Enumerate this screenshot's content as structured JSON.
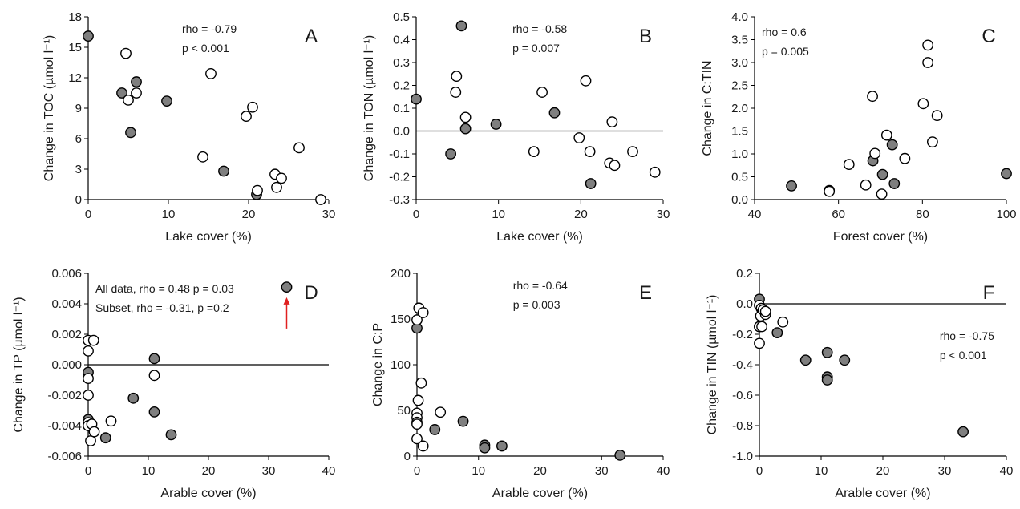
{
  "chart_data": [
    {
      "type": "scatter",
      "panel": "A",
      "xlabel": "Lake cover (%)",
      "ylabel": "Change in TOC (µmol l⁻¹)",
      "xlim": [
        0,
        30
      ],
      "ylim": [
        0,
        18
      ],
      "xticks": [
        0,
        10,
        20,
        30
      ],
      "yticks": [
        0,
        3,
        6,
        9,
        12,
        15,
        18
      ],
      "tick_decimals": 0,
      "zero_line": false,
      "annotations": [
        "rho = -0.79",
        "p < 0.001"
      ],
      "annotation_anchor": "top-center",
      "series": [
        {
          "marker": "filled",
          "points": [
            [
              0,
              16.1
            ],
            [
              4.2,
              10.5
            ],
            [
              5.3,
              6.6
            ],
            [
              6,
              11.6
            ],
            [
              9.8,
              9.7
            ],
            [
              16.9,
              2.8
            ],
            [
              21,
              0.5
            ]
          ]
        },
        {
          "marker": "open",
          "points": [
            [
              4.7,
              14.4
            ],
            [
              5,
              9.8
            ],
            [
              6,
              10.5
            ],
            [
              14.3,
              4.2
            ],
            [
              15.3,
              12.4
            ],
            [
              19.7,
              8.2
            ],
            [
              20.5,
              9.1
            ],
            [
              21.1,
              0.9
            ],
            [
              23.3,
              2.5
            ],
            [
              23.5,
              1.2
            ],
            [
              24.1,
              2.1
            ],
            [
              26.3,
              5.1
            ],
            [
              29,
              0
            ]
          ]
        }
      ]
    },
    {
      "type": "scatter",
      "panel": "B",
      "xlabel": "Lake cover (%)",
      "ylabel": "Change in TON (µmol l⁻¹)",
      "xlim": [
        0,
        30
      ],
      "ylim": [
        -0.3,
        0.5
      ],
      "xticks": [
        0,
        10,
        20,
        30
      ],
      "yticks": [
        -0.3,
        -0.2,
        -0.1,
        0.0,
        0.1,
        0.2,
        0.3,
        0.4,
        0.5
      ],
      "tick_decimals": 1,
      "zero_line": true,
      "annotations": [
        "rho = -0.58",
        "p = 0.007"
      ],
      "annotation_anchor": "top-center",
      "series": [
        {
          "marker": "filled",
          "points": [
            [
              0,
              0.14
            ],
            [
              4.2,
              -0.1
            ],
            [
              5.5,
              0.46
            ],
            [
              6,
              0.01
            ],
            [
              9.7,
              0.03
            ],
            [
              16.8,
              0.08
            ],
            [
              21.2,
              -0.23
            ]
          ]
        },
        {
          "marker": "open",
          "points": [
            [
              4.9,
              0.24
            ],
            [
              4.8,
              0.17
            ],
            [
              6,
              0.06
            ],
            [
              14.3,
              -0.09
            ],
            [
              15.3,
              0.17
            ],
            [
              19.8,
              -0.03
            ],
            [
              20.6,
              0.22
            ],
            [
              21.1,
              -0.09
            ],
            [
              23.5,
              -0.14
            ],
            [
              23.8,
              0.04
            ],
            [
              24.1,
              -0.15
            ],
            [
              26.3,
              -0.09
            ],
            [
              29,
              -0.18
            ]
          ]
        }
      ]
    },
    {
      "type": "scatter",
      "panel": "C",
      "xlabel": "Forest cover (%)",
      "ylabel": "Change in C:TIN",
      "xlim": [
        40,
        100
      ],
      "ylim": [
        0,
        4.0
      ],
      "xticks": [
        40,
        60,
        80,
        100
      ],
      "yticks": [
        0.0,
        0.5,
        1.0,
        1.5,
        2.0,
        2.5,
        3.0,
        3.5,
        4.0
      ],
      "tick_decimals": 1,
      "zero_line": false,
      "annotations": [
        "rho = 0.6",
        "p = 0.005"
      ],
      "annotation_anchor": "top-left",
      "series": [
        {
          "marker": "filled",
          "points": [
            [
              48.8,
              0.3
            ],
            [
              57.8,
              0.2
            ],
            [
              68.2,
              0.85
            ],
            [
              70.5,
              0.55
            ],
            [
              72.8,
              1.2
            ],
            [
              73.3,
              0.35
            ],
            [
              100,
              0.57
            ]
          ]
        },
        {
          "marker": "open",
          "points": [
            [
              57.8,
              0.18
            ],
            [
              62.5,
              0.77
            ],
            [
              66.5,
              0.32
            ],
            [
              68.1,
              2.26
            ],
            [
              68.7,
              1.01
            ],
            [
              70.3,
              0.12
            ],
            [
              71.5,
              1.41
            ],
            [
              75.8,
              0.9
            ],
            [
              80.2,
              2.1
            ],
            [
              81.3,
              3.38
            ],
            [
              81.3,
              3.0
            ],
            [
              82.4,
              1.26
            ],
            [
              83.5,
              1.84
            ]
          ]
        }
      ]
    },
    {
      "type": "scatter",
      "panel": "D",
      "xlabel": "Arable cover (%)",
      "ylabel": "Change in TP (µmol l⁻¹)",
      "xlim": [
        0,
        40
      ],
      "ylim": [
        -0.006,
        0.006
      ],
      "xticks": [
        0,
        10,
        20,
        30,
        40
      ],
      "yticks": [
        -0.006,
        -0.004,
        -0.002,
        0.0,
        0.002,
        0.004,
        0.006
      ],
      "tick_decimals": 3,
      "zero_line": true,
      "annotations": [
        "All data, rho = 0.48 p = 0.03",
        "Subset, rho = -0.31, p =0.2"
      ],
      "annotation_anchor": "top-left",
      "arrow_to": [
        33,
        0.0049
      ],
      "arrow_color": "#e02020",
      "series": [
        {
          "marker": "filled",
          "points": [
            [
              0,
              -0.0005
            ],
            [
              0,
              -0.0036
            ],
            [
              0,
              -0.0039
            ],
            [
              2.9,
              -0.0048
            ],
            [
              7.5,
              -0.0022
            ],
            [
              11,
              0.0004
            ],
            [
              11,
              -0.0031
            ],
            [
              13.8,
              -0.0046
            ],
            [
              33,
              0.0051
            ]
          ]
        },
        {
          "marker": "open",
          "points": [
            [
              0,
              0.0016
            ],
            [
              0,
              0.0009
            ],
            [
              0,
              -0.0009
            ],
            [
              0,
              -0.002
            ],
            [
              0,
              -0.0038
            ],
            [
              0,
              -0.004
            ],
            [
              0.4,
              -0.005
            ],
            [
              0.6,
              -0.0039
            ],
            [
              0.9,
              0.0016
            ],
            [
              1,
              -0.0044
            ],
            [
              3.8,
              -0.0037
            ],
            [
              11,
              -0.0007
            ]
          ]
        }
      ]
    },
    {
      "type": "scatter",
      "panel": "E",
      "xlabel": "Arable cover (%)",
      "ylabel": "Change in C:P",
      "xlim": [
        0,
        40
      ],
      "ylim": [
        0,
        200
      ],
      "xticks": [
        0,
        10,
        20,
        30,
        40
      ],
      "yticks": [
        0,
        50,
        100,
        150,
        200
      ],
      "tick_decimals": 0,
      "zero_line": false,
      "annotations": [
        "rho = -0.64",
        "p = 0.003"
      ],
      "annotation_anchor": "top-center",
      "series": [
        {
          "marker": "filled",
          "points": [
            [
              0,
              140
            ],
            [
              2.9,
              29
            ],
            [
              7.5,
              38
            ],
            [
              11,
              12
            ],
            [
              11,
              9
            ],
            [
              13.8,
              11
            ],
            [
              33,
              1
            ]
          ]
        },
        {
          "marker": "open",
          "points": [
            [
              0,
              149
            ],
            [
              0.3,
              162
            ],
            [
              1,
              157
            ],
            [
              0.7,
              80
            ],
            [
              0.2,
              61
            ],
            [
              0,
              47
            ],
            [
              0,
              42
            ],
            [
              0,
              37
            ],
            [
              0,
              35
            ],
            [
              0,
              19
            ],
            [
              1,
              11
            ],
            [
              3.8,
              48
            ]
          ]
        }
      ]
    },
    {
      "type": "scatter",
      "panel": "F",
      "xlabel": "Arable cover (%)",
      "ylabel": "Change in TIN (µmol l⁻¹)",
      "xlim": [
        0,
        40
      ],
      "ylim": [
        -1.0,
        0.2
      ],
      "xticks": [
        0,
        10,
        20,
        30,
        40
      ],
      "yticks": [
        -1.0,
        -0.8,
        -0.6,
        -0.4,
        -0.2,
        0.0,
        0.2
      ],
      "tick_decimals": 1,
      "zero_line": true,
      "annotations": [
        "rho = -0.75",
        "p < 0.001"
      ],
      "annotation_anchor": "right-middle",
      "series": [
        {
          "marker": "filled",
          "points": [
            [
              0,
              0.03
            ],
            [
              0,
              -0.15
            ],
            [
              2.9,
              -0.19
            ],
            [
              7.5,
              -0.37
            ],
            [
              11,
              -0.32
            ],
            [
              11,
              -0.48
            ],
            [
              11,
              -0.5
            ],
            [
              13.8,
              -0.37
            ],
            [
              33,
              -0.84
            ]
          ]
        },
        {
          "marker": "open",
          "points": [
            [
              0,
              -0.01
            ],
            [
              0.3,
              -0.03
            ],
            [
              0.5,
              -0.05
            ],
            [
              0.2,
              -0.08
            ],
            [
              0.6,
              -0.04
            ],
            [
              1,
              -0.07
            ],
            [
              0,
              -0.15
            ],
            [
              0.4,
              -0.15
            ],
            [
              0,
              -0.26
            ],
            [
              1,
              -0.05
            ],
            [
              3.8,
              -0.12
            ]
          ]
        }
      ]
    }
  ],
  "colors": {
    "filled": "#7f7f7f",
    "open": "#ffffff",
    "stroke": "#000000",
    "axis": "#000000",
    "arrow": "#e02020"
  }
}
